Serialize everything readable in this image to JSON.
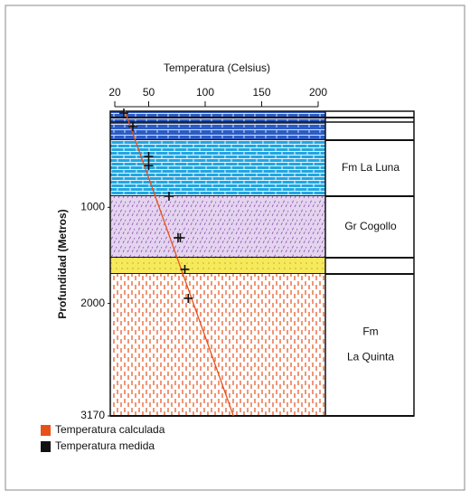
{
  "chart_data": {
    "type": "depth-profile",
    "title": "Temperatura (Celsius)",
    "y_label": "Profundidad (Metros)",
    "xlim": [
      20,
      200
    ],
    "xticks": [
      20,
      50,
      100,
      150,
      200
    ],
    "ylim": [
      0,
      3170
    ],
    "yticks": [
      1000,
      2000,
      3170
    ],
    "layers": [
      {
        "top": 0,
        "bottom": 301
      },
      {
        "top": 301,
        "bottom": 884,
        "label": [
          "Fm La Luna"
        ]
      },
      {
        "top": 884,
        "bottom": 1524,
        "label": [
          "Gr Cogollo"
        ]
      },
      {
        "top": 1524,
        "bottom": 1693
      },
      {
        "top": 1693,
        "bottom": 3170,
        "label": [
          "Fm",
          "La Quinta"
        ]
      }
    ],
    "series": [
      {
        "name": "Temperatura calculada",
        "color": "#e8501a",
        "kind": "line",
        "x": [
          29,
          125
        ],
        "y": [
          0,
          3170
        ]
      },
      {
        "name": "Temperatura medida",
        "color": "#111111",
        "kind": "points",
        "x": [
          28,
          36,
          50,
          50,
          68,
          76,
          78,
          82,
          85
        ],
        "y": [
          19,
          160,
          470,
          565,
          884,
          1317,
          1317,
          1646,
          1947
        ]
      }
    ]
  }
}
